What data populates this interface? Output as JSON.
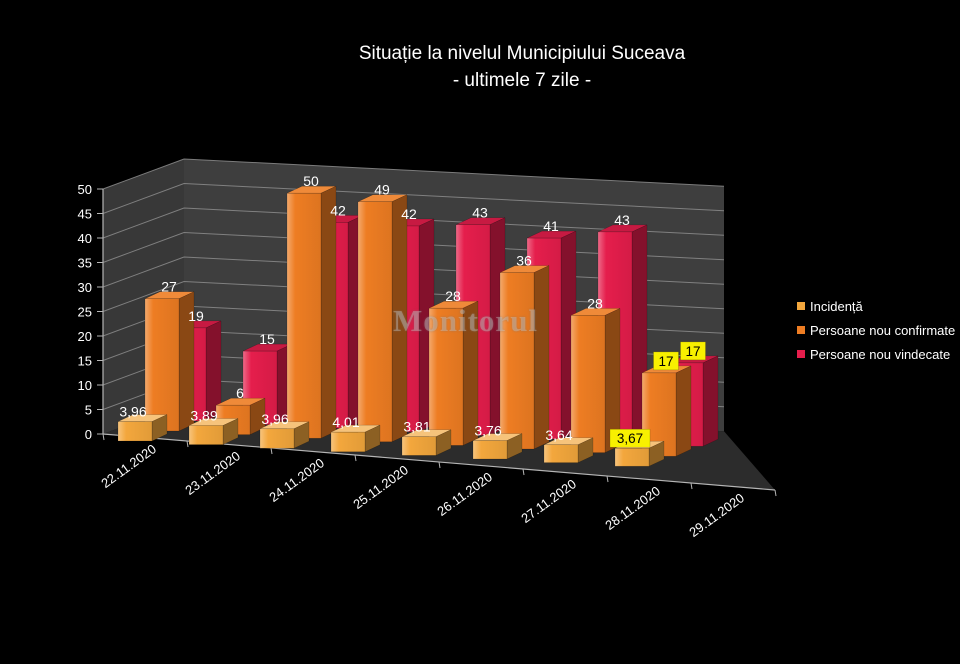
{
  "title": {
    "line1": "Situație la nivelul Municipiului Suceava",
    "line2": "- ultimele 7 zile -"
  },
  "watermark": "Monitorul",
  "chart_data": {
    "type": "bar",
    "projection": "3d",
    "title": "Situație la nivelul Municipiului Suceava - ultimele 7 zile -",
    "categories": [
      "22.11.2020",
      "23.11.2020",
      "24.11.2020",
      "25.11.2020",
      "26.11.2020",
      "27.11.2020",
      "28.11.2020",
      "29.11.2020"
    ],
    "series": [
      {
        "name": "Incidență",
        "values": [
          3.96,
          3.89,
          3.96,
          4.01,
          3.81,
          3.76,
          3.64,
          3.67
        ],
        "labels": [
          "3,96",
          "3,89",
          "3,96",
          "4,01",
          "3,81",
          "3,76",
          "3,64",
          "3,67"
        ],
        "color": "#f3a73d"
      },
      {
        "name": "Persoane nou confirmate",
        "values": [
          27,
          6,
          50,
          49,
          28,
          36,
          28,
          17
        ],
        "labels": [
          "27",
          "6",
          "50",
          "49",
          "28",
          "36",
          "28",
          "17"
        ],
        "color": "#ee7d23"
      },
      {
        "name": "Persoane nou vindecate",
        "values": [
          19,
          15,
          42,
          42,
          43,
          41,
          43,
          17
        ],
        "labels": [
          "19",
          "15",
          "42",
          "42",
          "43",
          "41",
          "43",
          "17"
        ],
        "color": "#e51e4c"
      }
    ],
    "ylim": [
      0,
      50
    ],
    "yticks": [
      0,
      5,
      10,
      15,
      20,
      25,
      30,
      35,
      40,
      45,
      50
    ],
    "grid": true,
    "legend_position": "right",
    "highlight_last_category": true,
    "highlight_color": "#f8f000",
    "label_color": "#ffffff"
  },
  "colors": {
    "background": "#000000",
    "back_wall": "#3e3e3e",
    "left_wall": "#383838",
    "floor": "#2c2c2c",
    "gridline": "#8c8c8c",
    "axis": "#b5b5b5",
    "text": "#ffffff"
  }
}
